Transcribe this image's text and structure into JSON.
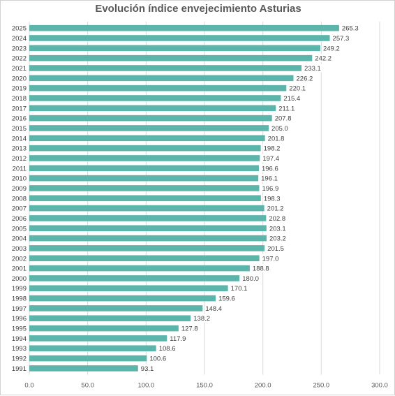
{
  "chart_data": {
    "type": "bar",
    "orientation": "horizontal",
    "title": "Evolución índice envejecimiento Asturias",
    "xlabel": "",
    "ylabel": "",
    "xlim": [
      0,
      300
    ],
    "x_ticks": [
      "0.0",
      "50.0",
      "100.0",
      "150.0",
      "200.0",
      "250.0",
      "300.0"
    ],
    "grid": "vertical",
    "legend": "none",
    "bar_color": "#5bb5aa",
    "categories": [
      "2025",
      "2024",
      "2023",
      "2022",
      "2021",
      "2020",
      "2019",
      "2018",
      "2017",
      "2016",
      "2015",
      "2014",
      "2013",
      "2012",
      "2011",
      "2010",
      "2009",
      "2008",
      "2007",
      "2006",
      "2005",
      "2004",
      "2003",
      "2002",
      "2001",
      "2000",
      "1999",
      "1998",
      "1997",
      "1996",
      "1995",
      "1994",
      "1993",
      "1992",
      "1991"
    ],
    "values": [
      265.3,
      257.3,
      249.2,
      242.2,
      233.1,
      226.2,
      220.1,
      215.4,
      211.1,
      207.8,
      205.0,
      201.8,
      198.2,
      197.4,
      196.6,
      196.1,
      196.9,
      198.3,
      201.2,
      202.8,
      203.1,
      203.2,
      201.5,
      197.0,
      188.8,
      180.0,
      170.1,
      159.6,
      148.4,
      138.2,
      127.8,
      117.9,
      108.6,
      100.6,
      93.1
    ],
    "data_labels": [
      "265.3",
      "257.3",
      "249.2",
      "242.2",
      "233.1",
      "226.2",
      "220.1",
      "215.4",
      "211.1",
      "207.8",
      "205.0",
      "201.8",
      "198.2",
      "197.4",
      "196.6",
      "196.1",
      "196.9",
      "198.3",
      "201.2",
      "202.8",
      "203.1",
      "203.2",
      "201.5",
      "197.0",
      "188.8",
      "180.0",
      "170.1",
      "159.6",
      "148.4",
      "138.2",
      "127.8",
      "117.9",
      "108.6",
      "100.6",
      "93.1"
    ]
  }
}
